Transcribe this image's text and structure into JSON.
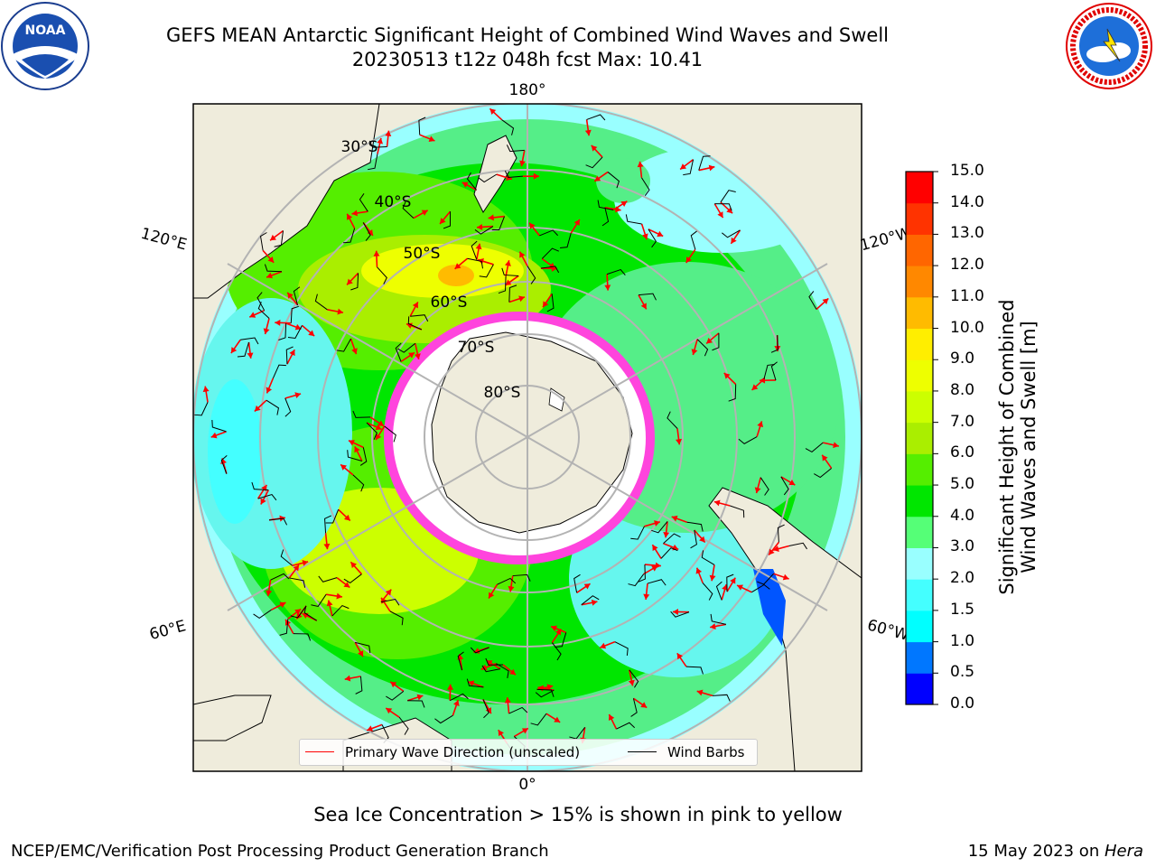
{
  "header": {
    "title_line1": "GEFS MEAN Antarctic Significant Height of Combined Wind Waves and Swell",
    "title_line2": "20230513 t12z 048h fcst   Max: 10.41"
  },
  "logos": {
    "left": "NOAA",
    "left_ring": "NATIONAL OCEANIC AND ATMOSPHERIC ADMINISTRATION · U.S. DEPARTMENT OF COMMERCE",
    "right_ring": "NATIONAL WEATHER SERVICE"
  },
  "map": {
    "projection": "south-polar-stereographic",
    "longitude_labels": {
      "top": "180°",
      "bottom": "0°",
      "left_upper": "120°E",
      "left_lower": "60°E",
      "right_upper": "120°W",
      "right_lower": "60°W"
    },
    "latitude_labels": [
      "30°S",
      "40°S",
      "50°S",
      "60°S",
      "70°S",
      "80°S"
    ]
  },
  "legend": {
    "wave_label": "Primary Wave Direction (unscaled)",
    "wind_label": "Wind Barbs",
    "wave_color": "#ff0000",
    "wind_color": "#000000"
  },
  "colorbar": {
    "title_line1": "Significant Height of Combined",
    "title_line2": "Wind Waves and Swell [m]",
    "ticks": [
      "0.0",
      "0.5",
      "1.0",
      "1.5",
      "2.0",
      "3.0",
      "4.0",
      "5.0",
      "6.0",
      "7.0",
      "8.0",
      "9.0",
      "10.0",
      "11.0",
      "12.0",
      "13.0",
      "14.0",
      "15.0"
    ],
    "colors": [
      "#0000ff",
      "#0077ff",
      "#00ffff",
      "#44ffff",
      "#99ffff",
      "#55ff77",
      "#00e600",
      "#55ee00",
      "#aaee00",
      "#ccff00",
      "#eeff00",
      "#ffee00",
      "#ffbb00",
      "#ff8800",
      "#ff6600",
      "#ff3300",
      "#ff0000"
    ]
  },
  "footer": {
    "note": "Sea Ice Concentration > 15% is shown in pink to yellow",
    "left": "NCEP/EMC/Verification Post Processing Product Generation Branch",
    "right_prefix": "15 May 2023 on ",
    "right_machine": "Hera"
  }
}
